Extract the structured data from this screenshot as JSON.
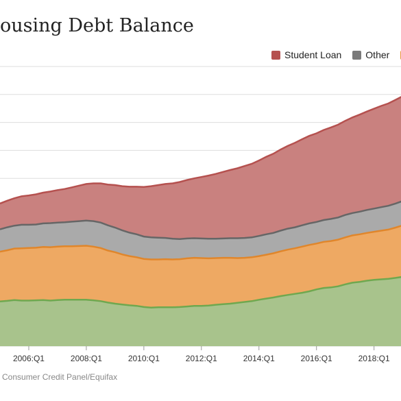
{
  "title": "ousing Debt Balance",
  "source": "Consumer Credit Panel/Equifax",
  "legend": [
    {
      "label": "Student Loan",
      "color": "#b5514f"
    },
    {
      "label": "Other",
      "color": "#7a7a7a"
    },
    {
      "label": "",
      "color": "#e9933b"
    }
  ],
  "chart_data": {
    "type": "area",
    "stacked": true,
    "x_tick_labels": [
      "2006:Q1",
      "2008:Q1",
      "2010:Q1",
      "2012:Q1",
      "2014:Q1",
      "2016:Q1",
      "2018:Q1"
    ],
    "x": [
      "2005:Q1",
      "2005:Q2",
      "2005:Q3",
      "2005:Q4",
      "2006:Q1",
      "2006:Q2",
      "2006:Q3",
      "2006:Q4",
      "2007:Q1",
      "2007:Q2",
      "2007:Q3",
      "2007:Q4",
      "2008:Q1",
      "2008:Q2",
      "2008:Q3",
      "2008:Q4",
      "2009:Q1",
      "2009:Q2",
      "2009:Q3",
      "2009:Q4",
      "2010:Q1",
      "2010:Q2",
      "2010:Q3",
      "2010:Q4",
      "2011:Q1",
      "2011:Q2",
      "2011:Q3",
      "2011:Q4",
      "2012:Q1",
      "2012:Q2",
      "2012:Q3",
      "2012:Q4",
      "2013:Q1",
      "2013:Q2",
      "2013:Q3",
      "2013:Q4",
      "2014:Q1",
      "2014:Q2",
      "2014:Q3",
      "2014:Q4",
      "2015:Q1",
      "2015:Q2",
      "2015:Q3",
      "2015:Q4",
      "2016:Q1",
      "2016:Q2",
      "2016:Q3",
      "2016:Q4",
      "2017:Q1",
      "2017:Q2",
      "2017:Q3",
      "2017:Q4",
      "2018:Q1",
      "2018:Q2",
      "2018:Q3",
      "2018:Q4",
      "2019:Q1"
    ],
    "ylim": [
      0,
      10
    ],
    "grid": true,
    "legend_position": "top-right",
    "series": [
      {
        "color": "#a8c38c",
        "line": "#6fa84f",
        "values": [
          1.6,
          1.62,
          1.65,
          1.63,
          1.63,
          1.64,
          1.65,
          1.63,
          1.65,
          1.66,
          1.66,
          1.66,
          1.66,
          1.64,
          1.61,
          1.56,
          1.52,
          1.49,
          1.46,
          1.44,
          1.4,
          1.38,
          1.39,
          1.39,
          1.39,
          1.4,
          1.42,
          1.44,
          1.44,
          1.45,
          1.48,
          1.5,
          1.52,
          1.55,
          1.58,
          1.61,
          1.66,
          1.7,
          1.74,
          1.79,
          1.83,
          1.87,
          1.91,
          1.96,
          2.03,
          2.08,
          2.1,
          2.14,
          2.21,
          2.27,
          2.3,
          2.34,
          2.37,
          2.39,
          2.41,
          2.44,
          2.48
        ]
      },
      {
        "color": "#eea963",
        "line": "#e0862b",
        "values": [
          1.78,
          1.81,
          1.84,
          1.87,
          1.88,
          1.88,
          1.9,
          1.91,
          1.91,
          1.91,
          1.91,
          1.92,
          1.93,
          1.92,
          1.9,
          1.86,
          1.84,
          1.79,
          1.76,
          1.74,
          1.72,
          1.72,
          1.71,
          1.72,
          1.71,
          1.71,
          1.72,
          1.72,
          1.71,
          1.69,
          1.67,
          1.66,
          1.64,
          1.6,
          1.58,
          1.57,
          1.56,
          1.57,
          1.58,
          1.6,
          1.62,
          1.63,
          1.65,
          1.66,
          1.64,
          1.65,
          1.66,
          1.67,
          1.68,
          1.69,
          1.7,
          1.71,
          1.72,
          1.74,
          1.76,
          1.8,
          1.84
        ]
      },
      {
        "color": "#aaaaaa",
        "line": "#666666",
        "values": [
          0.8,
          0.82,
          0.82,
          0.84,
          0.83,
          0.83,
          0.84,
          0.86,
          0.86,
          0.86,
          0.88,
          0.89,
          0.9,
          0.91,
          0.91,
          0.9,
          0.88,
          0.86,
          0.84,
          0.82,
          0.8,
          0.79,
          0.78,
          0.76,
          0.74,
          0.72,
          0.71,
          0.7,
          0.7,
          0.7,
          0.69,
          0.69,
          0.7,
          0.71,
          0.71,
          0.71,
          0.72,
          0.73,
          0.73,
          0.74,
          0.75,
          0.75,
          0.76,
          0.77,
          0.77,
          0.78,
          0.79,
          0.79,
          0.8,
          0.8,
          0.81,
          0.82,
          0.83,
          0.84,
          0.85,
          0.86,
          0.87
        ]
      },
      {
        "color": "#c9817f",
        "line": "#b5514f",
        "values": [
          0.92,
          0.95,
          0.98,
          1.02,
          1.05,
          1.08,
          1.1,
          1.13,
          1.16,
          1.19,
          1.23,
          1.27,
          1.31,
          1.35,
          1.4,
          1.46,
          1.52,
          1.58,
          1.64,
          1.7,
          1.77,
          1.83,
          1.88,
          1.93,
          1.98,
          2.04,
          2.09,
          2.14,
          2.2,
          2.26,
          2.32,
          2.38,
          2.44,
          2.5,
          2.57,
          2.63,
          2.7,
          2.77,
          2.83,
          2.9,
          2.96,
          3.02,
          3.08,
          3.13,
          3.17,
          3.22,
          3.27,
          3.32,
          3.37,
          3.42,
          3.47,
          3.52,
          3.57,
          3.62,
          3.66,
          3.71,
          3.75
        ]
      }
    ]
  }
}
